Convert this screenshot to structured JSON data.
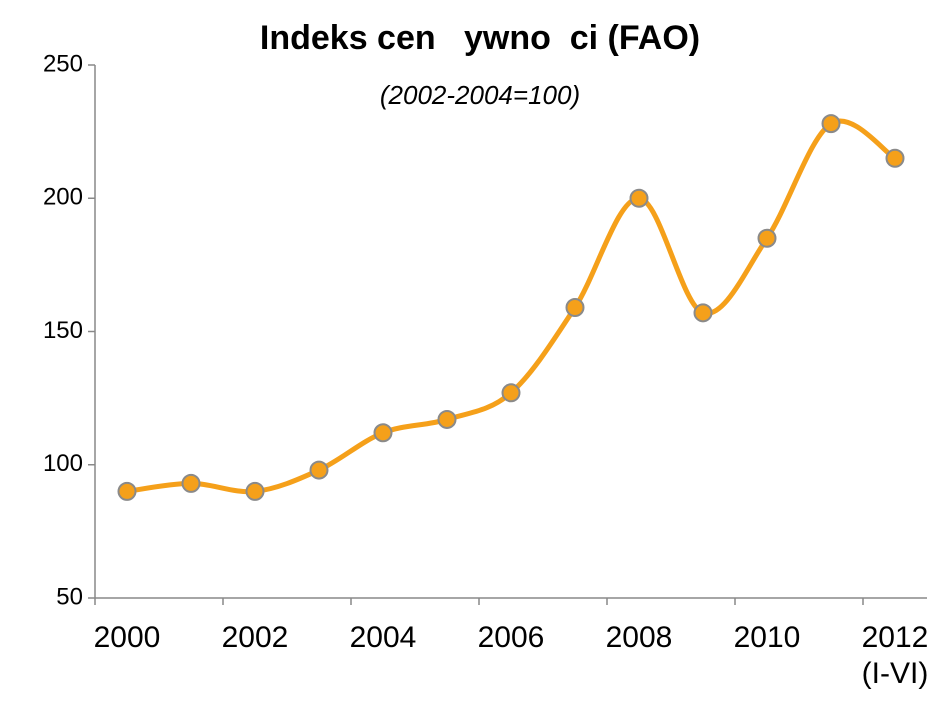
{
  "chart_data": {
    "type": "line",
    "title": "Indeks cen   ywno  ci (FAO)",
    "subtitle": "(2002-2004=100)",
    "categories": [
      "2000",
      null,
      "2002",
      null,
      "2004",
      null,
      "2006",
      null,
      "2008",
      null,
      "2010",
      null,
      "2012 (I-VI)"
    ],
    "series": [
      {
        "name": "FAO",
        "color": "#f5a01a",
        "values": [
          90,
          93,
          90,
          98,
          112,
          117,
          127,
          159,
          200,
          157,
          185,
          228,
          215
        ]
      }
    ],
    "ylim": [
      50,
      250
    ],
    "yticks": [
      50,
      100,
      150,
      200,
      250
    ]
  }
}
